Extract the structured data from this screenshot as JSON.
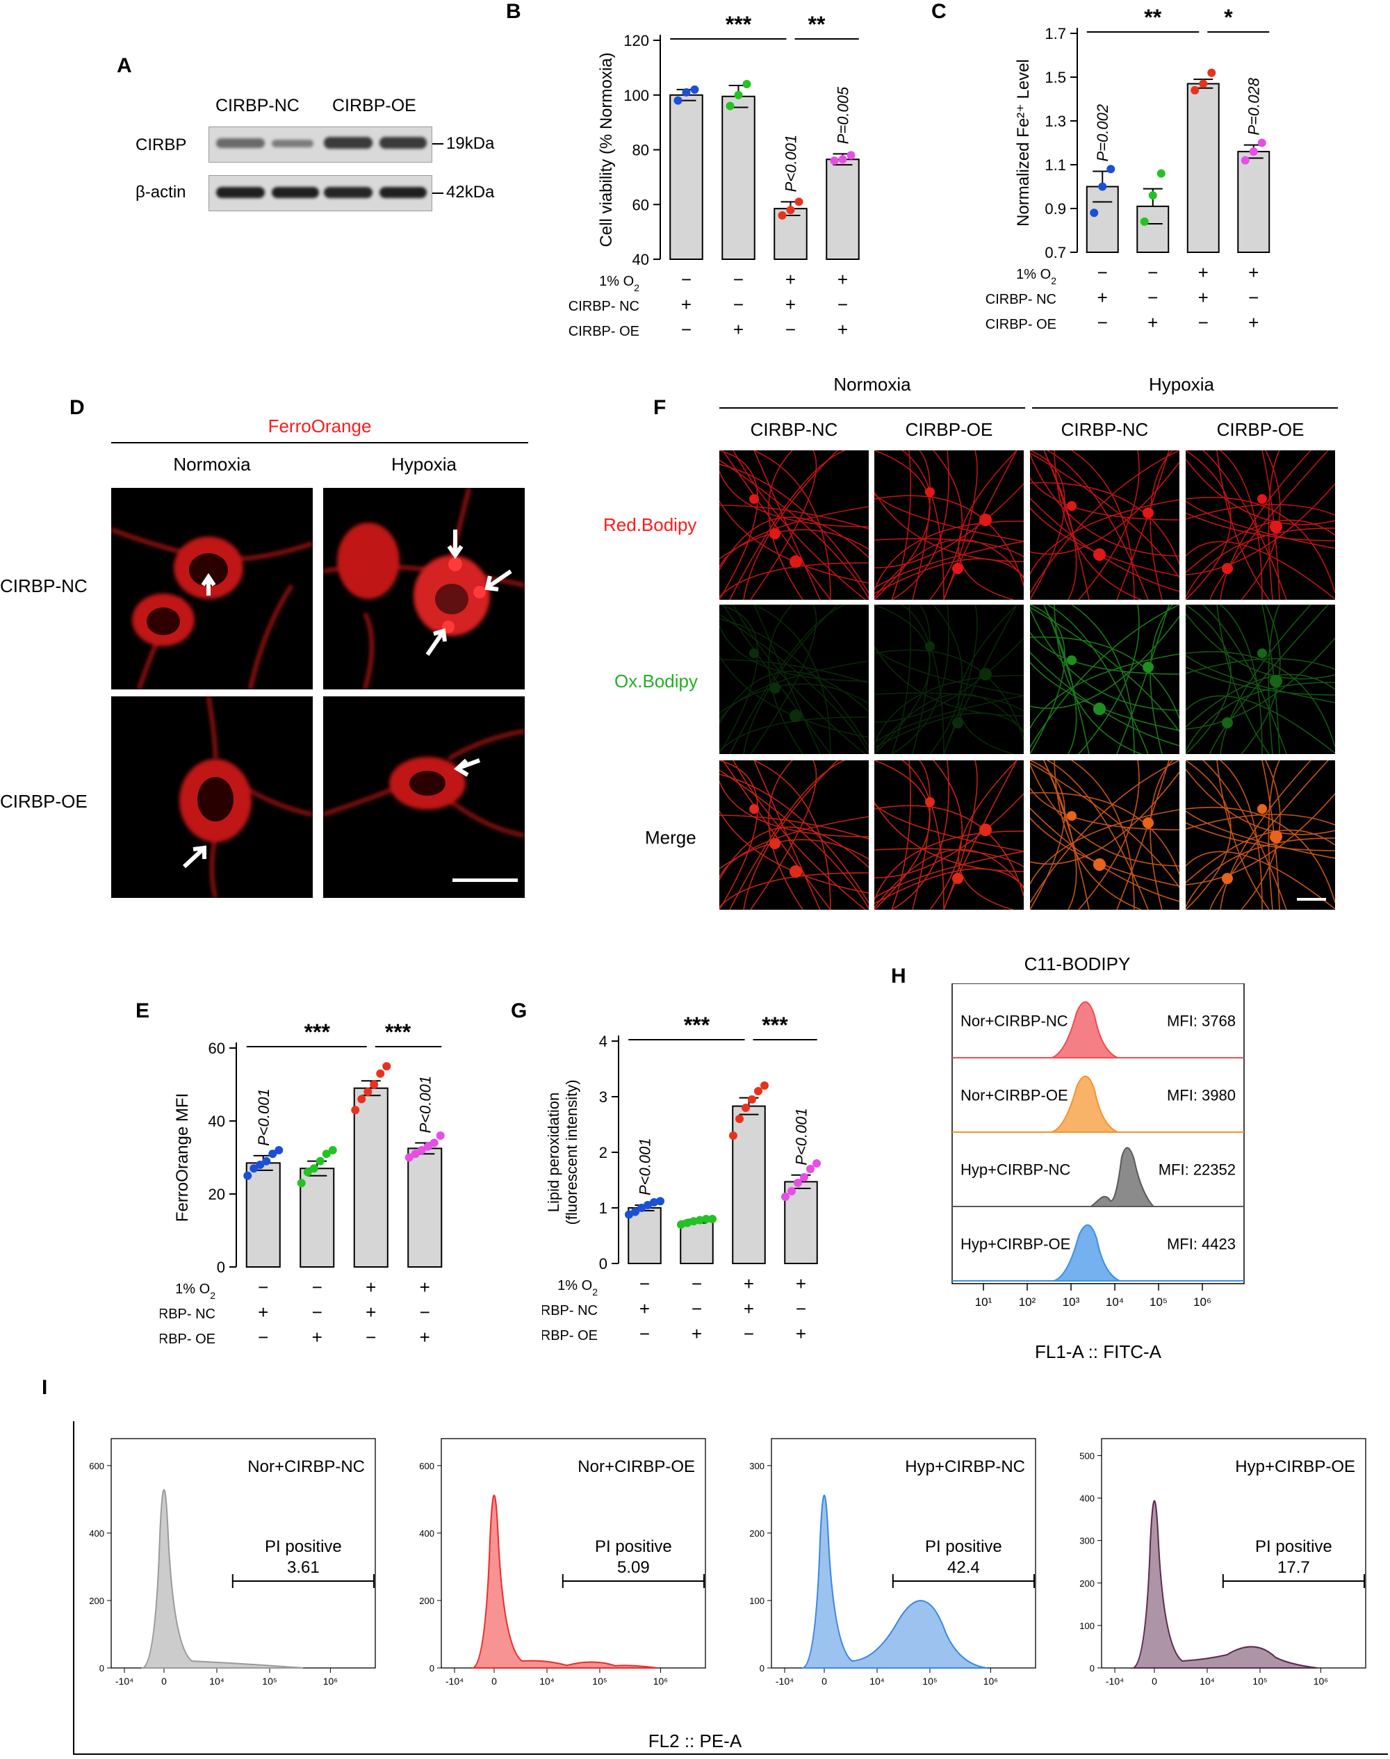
{
  "panel_letters": {
    "A": "A",
    "B": "B",
    "C": "C",
    "D": "D",
    "E": "E",
    "F": "F",
    "G": "G",
    "H": "H",
    "I": "I"
  },
  "western": {
    "groups": [
      "CIRBP-NC",
      "CIRBP-OE"
    ],
    "rows": [
      {
        "label": "CIRBP",
        "mw": "19kDa"
      },
      {
        "label": "β-actin",
        "mw": "42kDa"
      }
    ]
  },
  "treatment_rows": [
    {
      "label": "1% O2",
      "signs": [
        "−",
        "−",
        "+",
        "+"
      ]
    },
    {
      "label": "CIRBP- NC",
      "signs": [
        "+",
        "−",
        "+",
        "−"
      ]
    },
    {
      "label": "CIRBP- OE",
      "signs": [
        "−",
        "+",
        "−",
        "+"
      ]
    }
  ],
  "group_colors": [
    "#1a4fd6",
    "#22c322",
    "#e8321e",
    "#e64ee6"
  ],
  "chart_data": [
    {
      "panel": "B",
      "type": "bar",
      "ylabel": "Cell viability (% Normoxia)",
      "ylim": [
        40,
        120
      ],
      "yticks": [
        40,
        60,
        80,
        100,
        120
      ],
      "values": [
        100,
        99.5,
        58.5,
        76.5
      ],
      "errors": [
        2,
        4,
        2.5,
        2
      ],
      "points": [
        [
          98,
          101,
          102
        ],
        [
          96,
          100,
          104
        ],
        [
          56,
          58,
          61
        ],
        [
          76,
          76.5,
          78
        ]
      ],
      "pvalues": [
        "",
        "",
        "P<0.001",
        "P=0.005"
      ],
      "sig": [
        {
          "text": "***"
        },
        {
          "text": "**"
        }
      ]
    },
    {
      "panel": "C",
      "type": "bar",
      "ylabel": "Normalized Fe²⁺ Level",
      "ylim": [
        0.7,
        1.7
      ],
      "yticks": [
        0.7,
        0.9,
        1.1,
        1.3,
        1.5,
        1.7
      ],
      "values": [
        1.0,
        0.91,
        1.47,
        1.16
      ],
      "errors": [
        0.07,
        0.08,
        0.02,
        0.03
      ],
      "points": [
        [
          0.88,
          1.0,
          1.08
        ],
        [
          0.84,
          0.96,
          1.06
        ],
        [
          1.44,
          1.47,
          1.52
        ],
        [
          1.12,
          1.16,
          1.2
        ]
      ],
      "pvalues": [
        "P=0.002",
        "",
        "",
        "P=0.028"
      ],
      "sig": [
        {
          "text": "**"
        },
        {
          "text": "*"
        }
      ]
    },
    {
      "panel": "E",
      "type": "bar",
      "ylabel": "FerroOrange MFI",
      "ylim": [
        0,
        60
      ],
      "yticks": [
        0,
        20,
        40,
        60
      ],
      "values": [
        28.5,
        27,
        49,
        32.5
      ],
      "errors": [
        2,
        2,
        2,
        1.5
      ],
      "points": [
        [
          25,
          27,
          28,
          29,
          31,
          32
        ],
        [
          23,
          26,
          27,
          29,
          31,
          32
        ],
        [
          43,
          46,
          48,
          50,
          53,
          55
        ],
        [
          30,
          31,
          32,
          33,
          34,
          36
        ]
      ],
      "pvalues": [
        "P<0.001",
        "",
        "",
        "P<0.001"
      ],
      "sig": [
        {
          "text": "***"
        },
        {
          "text": "***"
        }
      ]
    },
    {
      "panel": "G",
      "type": "bar",
      "ylabel": "Lipid peroxidation (fluorescent intensity)",
      "ylim": [
        0,
        4
      ],
      "yticks": [
        0,
        1,
        2,
        3,
        4
      ],
      "values": [
        1.0,
        0.76,
        2.83,
        1.47
      ],
      "errors": [
        0.05,
        0.03,
        0.15,
        0.12
      ],
      "points": [
        [
          0.88,
          0.93,
          1.0,
          1.05,
          1.1,
          1.12
        ],
        [
          0.7,
          0.73,
          0.76,
          0.78,
          0.8,
          0.8
        ],
        [
          2.3,
          2.6,
          2.8,
          2.95,
          3.1,
          3.2
        ],
        [
          1.2,
          1.3,
          1.45,
          1.55,
          1.7,
          1.8
        ]
      ],
      "pvalues": [
        "P<0.001",
        "",
        "",
        "P<0.001"
      ],
      "sig": [
        {
          "text": "***"
        },
        {
          "text": "***"
        }
      ]
    },
    {
      "panel": "H",
      "type": "histogram",
      "title": "C11-BODIPY",
      "xlabel": "FL1-A :: FITC-A",
      "xticks": [
        "10¹",
        "10²",
        "10³",
        "10⁴",
        "10⁵",
        "10⁶"
      ],
      "series": [
        {
          "name": "Nor+CIRBP-NC",
          "mfi": "MFI: 3768",
          "color": "#f04a52"
        },
        {
          "name": "Nor+CIRBP-OE",
          "mfi": "MFI: 3980",
          "color": "#f5932a"
        },
        {
          "name": "Hyp+CIRBP-NC",
          "mfi": "MFI: 22352",
          "color": "#5a5a5a"
        },
        {
          "name": "Hyp+CIRBP-OE",
          "mfi": "MFI: 4423",
          "color": "#3a8fe8"
        }
      ]
    },
    {
      "panel": "I",
      "type": "histogram",
      "xlabel": "FL2 :: PE-A",
      "xticks": [
        "-10⁴",
        "0",
        "10⁴",
        "10⁵",
        "10⁶"
      ],
      "plots": [
        {
          "name": "Nor+CIRBP-NC",
          "gate": "PI positive",
          "value": "3.61",
          "yticks": [
            "0",
            "200",
            "400",
            "600"
          ],
          "color": "#9a9a9a"
        },
        {
          "name": "Nor+CIRBP-OE",
          "gate": "PI positive",
          "value": "5.09",
          "yticks": [
            "0",
            "200",
            "400",
            "600"
          ],
          "color": "#f02828"
        },
        {
          "name": "Hyp+CIRBP-NC",
          "gate": "PI positive",
          "value": "42.4",
          "yticks": [
            "0",
            "100",
            "200",
            "300"
          ],
          "color": "#3a86e0"
        },
        {
          "name": "Hyp+CIRBP-OE",
          "gate": "PI positive",
          "value": "17.7",
          "yticks": [
            "0",
            "100",
            "200",
            "300",
            "400",
            "500"
          ],
          "color": "#5c2a4e"
        }
      ]
    }
  ],
  "panelD": {
    "stain": "FerroOrange",
    "cols": [
      "Normoxia",
      "Hypoxia"
    ],
    "rows": [
      "CIRBP-NC",
      "CIRBP-OE"
    ]
  },
  "panelF": {
    "conditions": [
      "Normoxia",
      "Hypoxia"
    ],
    "cols": [
      "CIRBP-NC",
      "CIRBP-OE",
      "CIRBP-NC",
      "CIRBP-OE"
    ],
    "rows": [
      {
        "label": "Red.Bodipy",
        "color": "#ff1a1a"
      },
      {
        "label": "Ox.Bodipy",
        "color": "#22b022"
      },
      {
        "label": "Merge",
        "color": "#000000"
      }
    ]
  }
}
